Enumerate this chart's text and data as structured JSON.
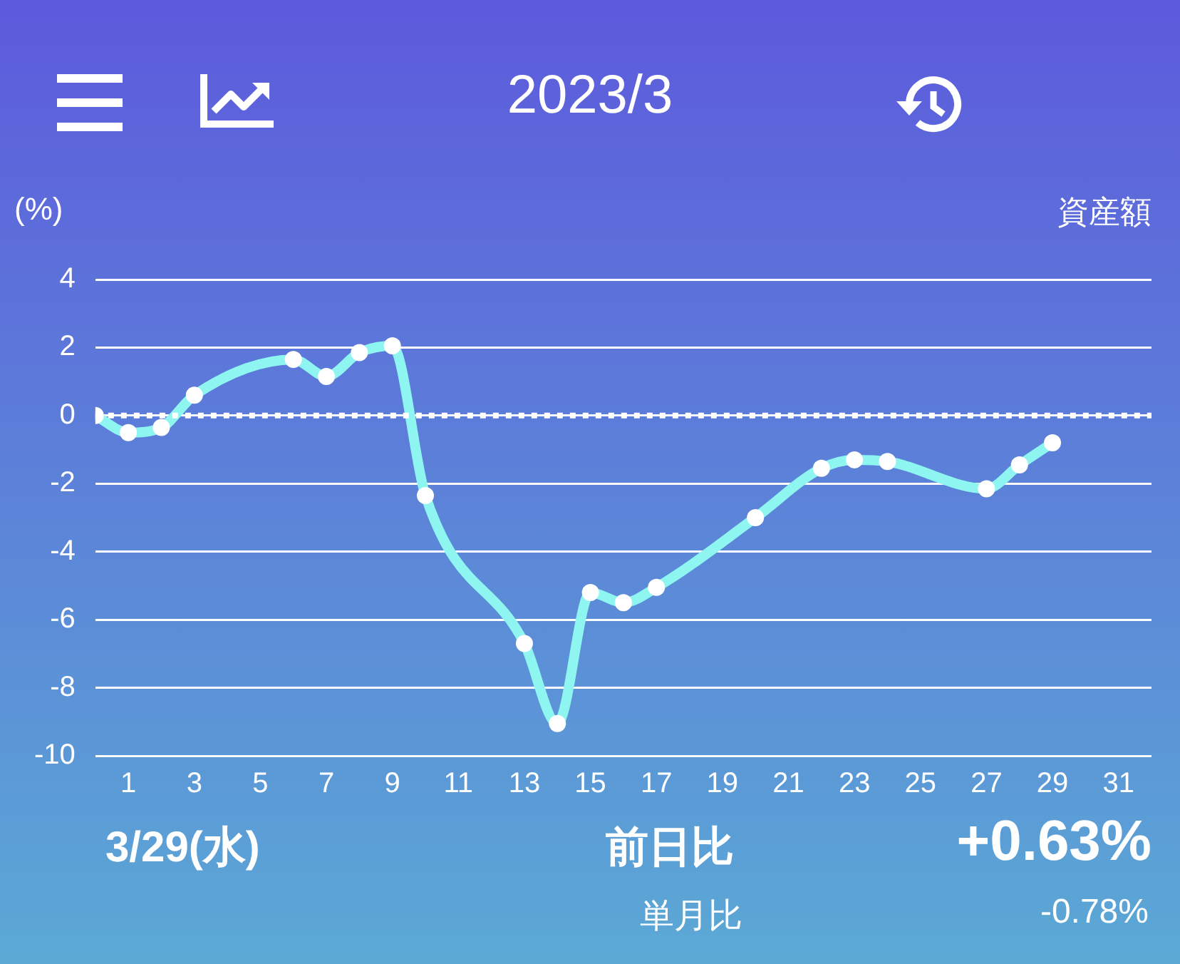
{
  "chart_data": {
    "type": "line",
    "title": "2023/3",
    "ylabel": "(%)",
    "x": [
      0,
      1,
      2,
      3,
      6,
      7,
      8,
      9,
      10,
      13,
      14,
      15,
      16,
      17,
      20,
      22,
      23,
      24,
      27,
      28,
      29
    ],
    "series": [
      {
        "color": "#8ef5f0",
        "values": [
          0,
          -0.5,
          -0.35,
          0.6,
          1.65,
          1.15,
          1.85,
          2.05,
          -2.35,
          -6.7,
          -9.05,
          -5.2,
          -5.5,
          -5.05,
          -3,
          -1.55,
          -1.3,
          -1.35,
          -2.15,
          -1.45,
          -0.8
        ]
      }
    ],
    "xlim": [
      0,
      32
    ],
    "xticks": [
      1,
      3,
      5,
      7,
      9,
      11,
      13,
      15,
      17,
      19,
      21,
      23,
      25,
      27,
      29,
      31
    ],
    "ylim": [
      -10,
      4
    ],
    "yticks": [
      -10,
      -8,
      -6,
      -4,
      -2,
      0,
      2,
      4
    ],
    "grid": "y",
    "legend": false,
    "marker": "circle",
    "line_style": "solid",
    "ref_lines": [
      {
        "axis": "y",
        "value": 0,
        "line_style": "dotted",
        "color": "#ffffff"
      }
    ],
    "annotations": [
      "資産額",
      "3/29(水)",
      "前日比",
      "+0.63%",
      "単月比",
      "-0.78%"
    ]
  }
}
